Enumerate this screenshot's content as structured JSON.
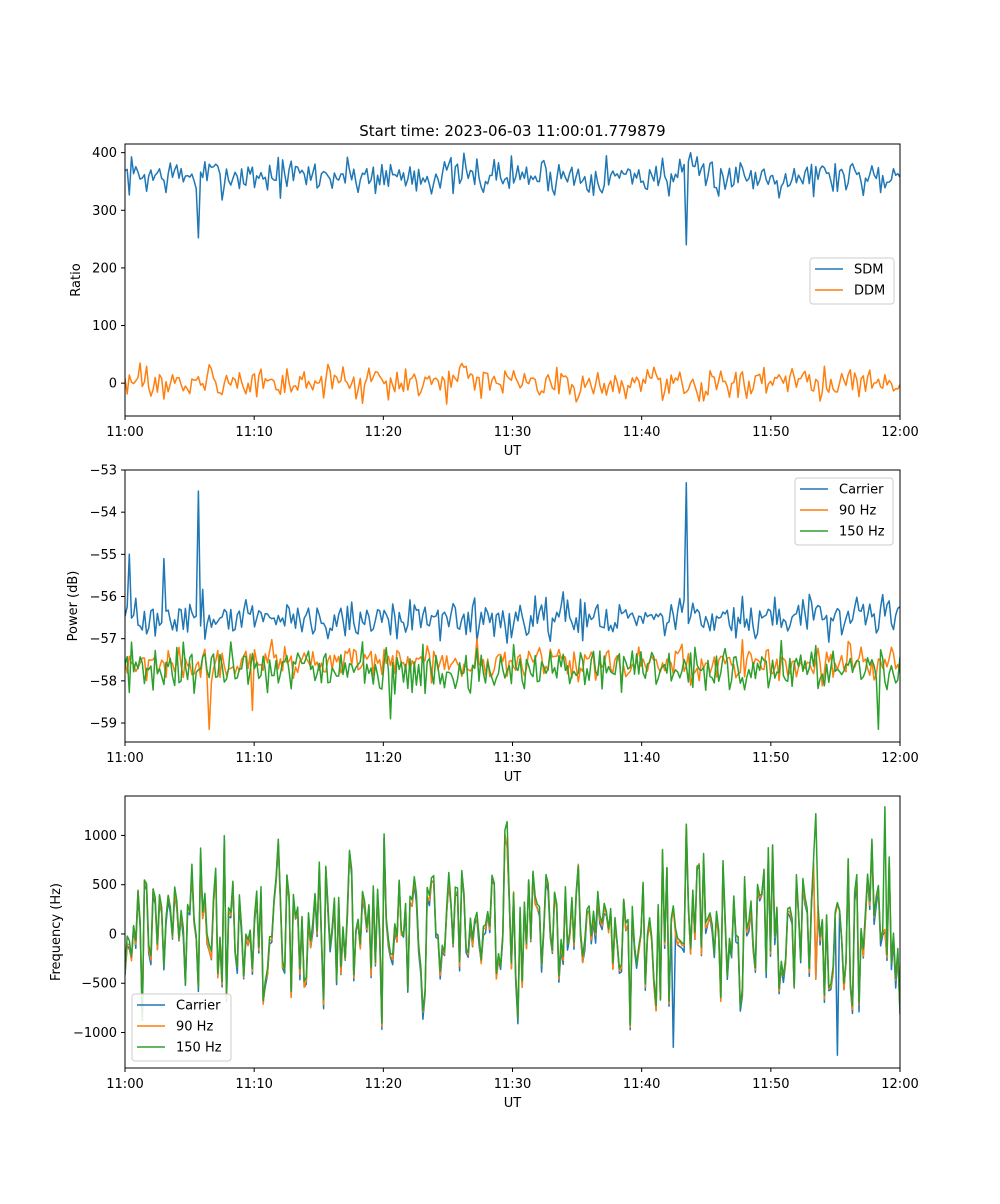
{
  "figure": {
    "title": "Start time: 2023-06-03 11:00:01.779879"
  },
  "colors": {
    "blue": "#1f77b4",
    "orange": "#ff7f0e",
    "green": "#2ca02c"
  },
  "chart_data": [
    {
      "type": "line",
      "title": "Start time: 2023-06-03 11:00:01.779879",
      "xlabel": "UT",
      "ylabel": "Ratio",
      "xlim": [
        "11:00",
        "12:00"
      ],
      "ylim": [
        -57,
        415
      ],
      "xticks": [
        "11:00",
        "11:10",
        "11:20",
        "11:30",
        "11:40",
        "11:50",
        "12:00"
      ],
      "yticks": [
        0,
        100,
        200,
        300,
        400
      ],
      "grid": false,
      "legend": "center-right",
      "n_points": 360,
      "series": [
        {
          "name": "SDM",
          "color": "#1f77b4",
          "mean": 360,
          "amplitude": 30,
          "spikes": [
            {
              "time": "11:05:40",
              "value": 252
            },
            {
              "time": "11:43:30",
              "value": 240
            }
          ]
        },
        {
          "name": "DDM",
          "color": "#ff7f0e",
          "mean": 0,
          "amplitude": 25,
          "spikes": [
            {
              "time": "11:06:30",
              "value": 32
            },
            {
              "time": "11:18:20",
              "value": -35
            }
          ]
        }
      ]
    },
    {
      "type": "line",
      "xlabel": "UT",
      "ylabel": "Power (dB)",
      "xlim": [
        "11:00",
        "12:00"
      ],
      "ylim": [
        -59.45,
        -53
      ],
      "xticks": [
        "11:00",
        "11:10",
        "11:20",
        "11:30",
        "11:40",
        "11:50",
        "12:00"
      ],
      "yticks": [
        -59,
        -58,
        -57,
        -56,
        -55,
        -54,
        -53
      ],
      "grid": false,
      "legend": "top-right",
      "n_points": 360,
      "series": [
        {
          "name": "Carrier",
          "color": "#1f77b4",
          "mean": -56.5,
          "amplitude": 0.45,
          "spikes": [
            {
              "time": "11:05:40",
              "value": -53.5
            },
            {
              "time": "11:43:30",
              "value": -53.3
            },
            {
              "time": "11:00:20",
              "value": -55.0
            },
            {
              "time": "11:03:00",
              "value": -55.1
            }
          ]
        },
        {
          "name": "90 Hz",
          "color": "#ff7f0e",
          "mean": -57.6,
          "amplitude": 0.4,
          "spikes": [
            {
              "time": "11:06:30",
              "value": -59.15
            },
            {
              "time": "11:09:50",
              "value": -58.7
            }
          ]
        },
        {
          "name": "150 Hz",
          "color": "#2ca02c",
          "mean": -57.7,
          "amplitude": 0.5,
          "spikes": [
            {
              "time": "11:20:30",
              "value": -58.9
            },
            {
              "time": "11:58:20",
              "value": -59.15
            }
          ]
        }
      ]
    },
    {
      "type": "line",
      "xlabel": "UT",
      "ylabel": "Frequency (Hz)",
      "xlim": [
        "11:00",
        "12:00"
      ],
      "ylim": [
        -1360,
        1400
      ],
      "xticks": [
        "11:00",
        "11:10",
        "11:20",
        "11:30",
        "11:40",
        "11:50",
        "12:00"
      ],
      "yticks": [
        -1000,
        -500,
        0,
        500,
        1000
      ],
      "grid": false,
      "legend": "bottom-left",
      "n_points": 360,
      "series": [
        {
          "name": "Carrier",
          "color": "#1f77b4",
          "mean": -40,
          "amplitude": 900,
          "spikes": [
            {
              "time": "11:42:30",
              "value": -1150
            },
            {
              "time": "11:55:10",
              "value": -1230
            }
          ]
        },
        {
          "name": "90 Hz",
          "color": "#ff7f0e",
          "mean": -10,
          "amplitude": 900,
          "spikes": []
        },
        {
          "name": "150 Hz",
          "color": "#2ca02c",
          "mean": 20,
          "amplitude": 900,
          "spikes": [
            {
              "time": "11:29:30",
              "value": 1140
            },
            {
              "time": "11:58:50",
              "value": 1290
            },
            {
              "time": "11:53:30",
              "value": 1220
            }
          ]
        }
      ]
    }
  ]
}
